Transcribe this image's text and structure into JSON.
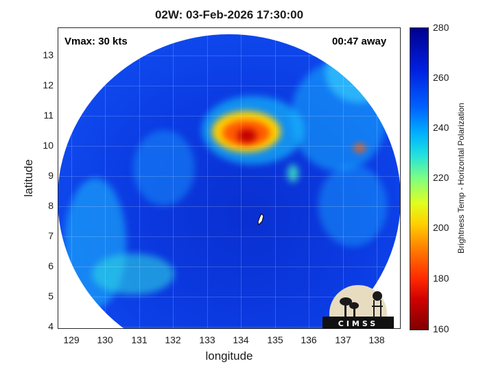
{
  "title": "02W: 03-Feb-2026 17:30:00",
  "vmax_label": "Vmax: 30 kts",
  "time_away_label": "00:47 away",
  "xlabel": "longitude",
  "ylabel": "latitude",
  "x_ticks": [
    "129",
    "130",
    "131",
    "132",
    "133",
    "134",
    "135",
    "136",
    "137",
    "138"
  ],
  "y_ticks": [
    "13",
    "12",
    "11",
    "10",
    "9",
    "8",
    "7",
    "6",
    "5",
    "4"
  ],
  "colorbar": {
    "label": "Brightness Temp - Horizontal Polarization",
    "ticks": [
      "280",
      "260",
      "240",
      "220",
      "200",
      "180",
      "160"
    ],
    "range": [
      160,
      280
    ],
    "colormap": "jet"
  },
  "logo_text": "CIMSS",
  "map": {
    "x_range": [
      128.7,
      138.7
    ],
    "y_range": [
      3.9,
      13.9
    ],
    "colors": {
      "background": "#0b3be2",
      "convection": "#ff2a00",
      "warm": "#ffd000"
    },
    "storm_center": {
      "lon": 134.5,
      "lat": 7.8
    }
  }
}
